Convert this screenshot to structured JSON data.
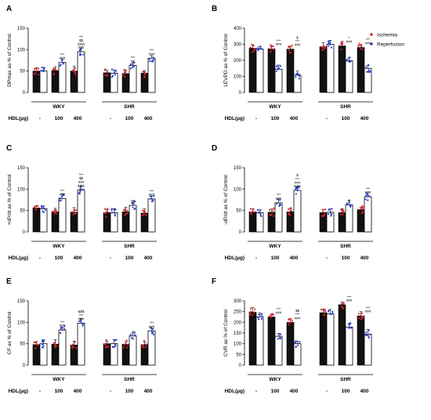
{
  "legend": {
    "items": [
      {
        "name": "Ischemia",
        "color": "#e8202a"
      },
      {
        "name": "Reperfusion",
        "color": "#2a3fd6"
      }
    ]
  },
  "colors": {
    "ischemia_bar": "#111111",
    "reperfusion_bar": "#ffffff",
    "ischemia_dot": "#e8202a",
    "reperfusion_dot": "#2a3fd6"
  },
  "chart_data": [
    {
      "type": "bar",
      "panel": "A",
      "ylabel": "DPmax as % of Control",
      "ylim": [
        0,
        150
      ],
      "yticks": [
        0,
        50,
        100,
        150
      ],
      "xlabel_prefix": "HDL(µg)",
      "groups": [
        "WKY",
        "SHR"
      ],
      "categories": [
        "-",
        "100",
        "400",
        "-",
        "100",
        "400"
      ],
      "series": [
        {
          "name": "Ischemia",
          "values": [
            50,
            51,
            50,
            46,
            44,
            45
          ]
        },
        {
          "name": "Reperfusion",
          "values": [
            50,
            70,
            95,
            45,
            63,
            80
          ]
        }
      ],
      "annotations": [
        "",
        "***\n###",
        "***\n$$\n&&&\n###",
        "",
        "***\n##",
        "***\n###"
      ]
    },
    {
      "type": "bar",
      "panel": "B",
      "ylabel": "LEVPD as % of Control",
      "ylim": [
        0,
        400
      ],
      "yticks": [
        0,
        100,
        200,
        300,
        400
      ],
      "xlabel_prefix": "HDL(µg)",
      "groups": [
        "WKY",
        "SHR"
      ],
      "categories": [
        "-",
        "100",
        "400",
        "-",
        "100",
        "400"
      ],
      "series": [
        {
          "name": "Ischemia",
          "values": [
            275,
            272,
            270,
            285,
            290,
            280
          ]
        },
        {
          "name": "Reperfusion",
          "values": [
            270,
            145,
            108,
            300,
            198,
            150
          ]
        }
      ],
      "annotations": [
        "",
        "***\n###",
        "$\n***\n###",
        "",
        "*\n###",
        "***\n###"
      ]
    },
    {
      "type": "bar",
      "panel": "C",
      "ylabel": "+dP/dt as % of Control",
      "ylim": [
        0,
        150
      ],
      "yticks": [
        0,
        50,
        100,
        150
      ],
      "xlabel_prefix": "HDL(µg)",
      "groups": [
        "WKY",
        "SHR"
      ],
      "categories": [
        "-",
        "100",
        "400",
        "-",
        "100",
        "400"
      ],
      "series": [
        {
          "name": "Ischemia",
          "values": [
            56,
            47,
            46,
            45,
            47,
            44
          ]
        },
        {
          "name": "Reperfusion",
          "values": [
            54,
            78,
            98,
            45,
            62,
            77
          ]
        }
      ],
      "annotations": [
        "",
        "***\n###",
        "***\n$$\n###\n&&&",
        "",
        "##",
        "***\n###"
      ]
    },
    {
      "type": "bar",
      "panel": "D",
      "ylabel": "-dP/dt as % of Control",
      "ylim": [
        0,
        150
      ],
      "yticks": [
        0,
        50,
        100,
        150
      ],
      "xlabel_prefix": "HDL(µg)",
      "groups": [
        "WKY",
        "SHR"
      ],
      "categories": [
        "-",
        "100",
        "400",
        "-",
        "100",
        "400"
      ],
      "series": [
        {
          "name": "Ischemia",
          "values": [
            47,
            46,
            47,
            45,
            45,
            52
          ]
        },
        {
          "name": "Reperfusion",
          "values": [
            45,
            68,
            97,
            46,
            63,
            82
          ]
        }
      ],
      "annotations": [
        "",
        "***\n###",
        "$\n***\n###\n&&&",
        "",
        "#",
        "***\n###"
      ]
    },
    {
      "type": "bar",
      "panel": "E",
      "ylabel": "CF as % of Control",
      "ylim": [
        0,
        150
      ],
      "yticks": [
        0,
        50,
        100,
        150
      ],
      "xlabel_prefix": "HDL(µg)",
      "groups": [
        "WKY",
        "SHR"
      ],
      "categories": [
        "-",
        "100",
        "400",
        "-",
        "100",
        "400"
      ],
      "series": [
        {
          "name": "Ischemia",
          "values": [
            48,
            49,
            47,
            50,
            49,
            48
          ]
        },
        {
          "name": "Reperfusion",
          "values": [
            50,
            82,
            98,
            50,
            68,
            80
          ]
        }
      ],
      "annotations": [
        "",
        "***\n###",
        "&$$\n***\n###",
        "",
        "#",
        "***\n###"
      ]
    },
    {
      "type": "bar",
      "panel": "F",
      "ylabel": "CVR as % of Control",
      "ylim": [
        0,
        300
      ],
      "yticks": [
        0,
        50,
        100,
        150,
        200,
        250,
        300
      ],
      "xlabel_prefix": "HDL(µg)",
      "groups": [
        "WKY",
        "SHR"
      ],
      "categories": [
        "-",
        "100",
        "400",
        "-",
        "100",
        "400"
      ],
      "series": [
        {
          "name": "Ischemia",
          "values": [
            248,
            225,
            200,
            245,
            282,
            230
          ]
        },
        {
          "name": "Reperfusion",
          "values": [
            225,
            135,
            100,
            240,
            178,
            145
          ]
        }
      ],
      "annotations": [
        "",
        "***\n###",
        "$$\n***\n###",
        "",
        "***\n###",
        "***\n###"
      ]
    }
  ]
}
